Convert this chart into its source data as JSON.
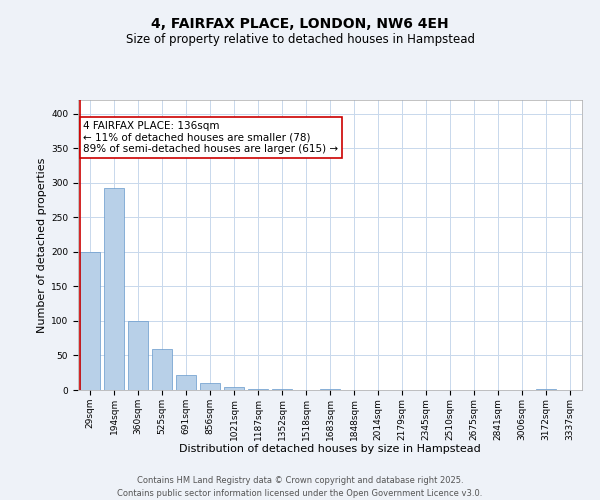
{
  "title": "4, FAIRFAX PLACE, LONDON, NW6 4EH",
  "subtitle": "Size of property relative to detached houses in Hampstead",
  "xlabel": "Distribution of detached houses by size in Hampstead",
  "ylabel": "Number of detached properties",
  "categories": [
    "29sqm",
    "194sqm",
    "360sqm",
    "525sqm",
    "691sqm",
    "856sqm",
    "1021sqm",
    "1187sqm",
    "1352sqm",
    "1518sqm",
    "1683sqm",
    "1848sqm",
    "2014sqm",
    "2179sqm",
    "2345sqm",
    "2510sqm",
    "2675sqm",
    "2841sqm",
    "3006sqm",
    "3172sqm",
    "3337sqm"
  ],
  "values": [
    200,
    292,
    100,
    60,
    22,
    10,
    5,
    2,
    1,
    0,
    1,
    0,
    0,
    0,
    0,
    0,
    0,
    0,
    0,
    1,
    0
  ],
  "bar_color": "#b8d0e8",
  "bar_edgecolor": "#6699cc",
  "vline_color": "#cc0000",
  "annotation_text": "4 FAIRFAX PLACE: 136sqm\n← 11% of detached houses are smaller (78)\n89% of semi-detached houses are larger (615) →",
  "annotation_fontsize": 7.5,
  "annotation_box_edgecolor": "#cc0000",
  "annotation_box_facecolor": "#ffffff",
  "ylim": [
    0,
    420
  ],
  "yticks": [
    0,
    50,
    100,
    150,
    200,
    250,
    300,
    350,
    400
  ],
  "title_fontsize": 10,
  "subtitle_fontsize": 8.5,
  "xlabel_fontsize": 8,
  "ylabel_fontsize": 8,
  "tick_fontsize": 6.5,
  "footer_text": "Contains HM Land Registry data © Crown copyright and database right 2025.\nContains public sector information licensed under the Open Government Licence v3.0.",
  "footer_fontsize": 6.0,
  "background_color": "#eef2f8",
  "axes_background_color": "#ffffff",
  "grid_color": "#c8d8ec",
  "figure_width": 6.0,
  "figure_height": 5.0,
  "dpi": 100
}
